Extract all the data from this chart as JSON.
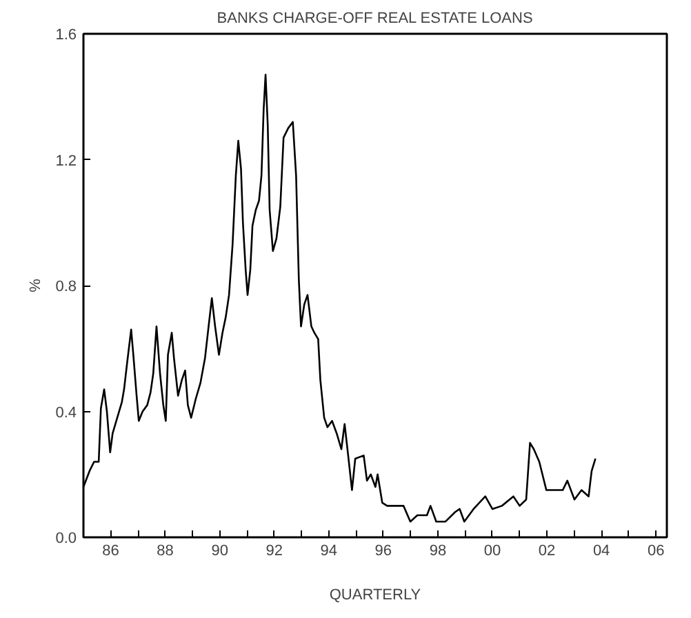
{
  "chart_data": {
    "type": "line",
    "title": "BANKS CHARGE-OFF REAL ESTATE LOANS",
    "xlabel": "QUARTERLY",
    "ylabel": "%",
    "x": [
      1985.0,
      1985.22,
      1985.39,
      1985.56,
      1985.64,
      1985.76,
      1985.86,
      1985.98,
      1986.07,
      1986.24,
      1986.41,
      1986.49,
      1986.61,
      1986.75,
      1986.83,
      1986.95,
      1987.03,
      1987.17,
      1987.34,
      1987.46,
      1987.56,
      1987.68,
      1987.81,
      1987.93,
      1988.02,
      1988.1,
      1988.24,
      1988.32,
      1988.47,
      1988.61,
      1988.73,
      1988.83,
      1988.95,
      1989.12,
      1989.29,
      1989.46,
      1989.59,
      1989.71,
      1989.83,
      1989.97,
      1990.1,
      1990.22,
      1990.34,
      1990.47,
      1990.59,
      1990.68,
      1990.78,
      1990.85,
      1990.95,
      1991.02,
      1991.12,
      1991.2,
      1991.32,
      1991.44,
      1991.53,
      1991.61,
      1991.68,
      1991.76,
      1991.83,
      1991.95,
      1992.08,
      1992.22,
      1992.34,
      1992.51,
      1992.68,
      1992.8,
      1992.9,
      1992.98,
      1993.1,
      1993.22,
      1993.36,
      1993.47,
      1993.61,
      1993.69,
      1993.83,
      1993.95,
      1994.12,
      1994.29,
      1994.46,
      1994.58,
      1994.71,
      1994.85,
      1994.97,
      1995.28,
      1995.4,
      1995.54,
      1995.71,
      1995.79,
      1995.96,
      1996.14,
      1996.74,
      1996.99,
      1997.25,
      1997.6,
      1997.73,
      1997.94,
      1998.28,
      1998.63,
      1998.8,
      1998.97,
      1999.31,
      1999.74,
      2000.0,
      2000.35,
      2000.77,
      2001.0,
      2001.24,
      2001.38,
      2001.52,
      2001.72,
      2001.98,
      2002.58,
      2002.75,
      2003.01,
      2003.27,
      2003.53,
      2003.64,
      2003.78
    ],
    "series": [
      {
        "color": "#000000",
        "values": [
          0.16,
          0.21,
          0.24,
          0.24,
          0.41,
          0.47,
          0.4,
          0.27,
          0.33,
          0.38,
          0.43,
          0.47,
          0.56,
          0.66,
          0.58,
          0.45,
          0.37,
          0.4,
          0.42,
          0.46,
          0.52,
          0.67,
          0.52,
          0.42,
          0.37,
          0.58,
          0.65,
          0.57,
          0.45,
          0.5,
          0.53,
          0.42,
          0.38,
          0.44,
          0.49,
          0.57,
          0.67,
          0.76,
          0.67,
          0.58,
          0.65,
          0.7,
          0.77,
          0.93,
          1.15,
          1.26,
          1.17,
          1.0,
          0.85,
          0.77,
          0.85,
          0.99,
          1.04,
          1.07,
          1.15,
          1.36,
          1.47,
          1.31,
          1.04,
          0.91,
          0.95,
          1.05,
          1.27,
          1.3,
          1.32,
          1.15,
          0.82,
          0.67,
          0.74,
          0.77,
          0.67,
          0.65,
          0.63,
          0.5,
          0.38,
          0.35,
          0.37,
          0.33,
          0.28,
          0.36,
          0.26,
          0.15,
          0.25,
          0.26,
          0.18,
          0.2,
          0.16,
          0.2,
          0.11,
          0.1,
          0.1,
          0.05,
          0.07,
          0.07,
          0.1,
          0.05,
          0.05,
          0.08,
          0.09,
          0.05,
          0.09,
          0.13,
          0.09,
          0.1,
          0.13,
          0.1,
          0.12,
          0.3,
          0.28,
          0.24,
          0.15,
          0.15,
          0.18,
          0.12,
          0.15,
          0.13,
          0.21,
          0.25
        ]
      }
    ],
    "xlim": [
      1985,
      2006.4
    ],
    "xticks": [
      {
        "value": 1986,
        "label": "86"
      },
      {
        "value": 1987,
        "label": null
      },
      {
        "value": 1988,
        "label": "88"
      },
      {
        "value": 1989,
        "label": null
      },
      {
        "value": 1990,
        "label": "90"
      },
      {
        "value": 1991,
        "label": null
      },
      {
        "value": 1992,
        "label": "92"
      },
      {
        "value": 1993,
        "label": null
      },
      {
        "value": 1994,
        "label": "94"
      },
      {
        "value": 1995,
        "label": null
      },
      {
        "value": 1996,
        "label": "96"
      },
      {
        "value": 1997,
        "label": null
      },
      {
        "value": 1998,
        "label": "98"
      },
      {
        "value": 1999,
        "label": null
      },
      {
        "value": 2000,
        "label": "00"
      },
      {
        "value": 2001,
        "label": null
      },
      {
        "value": 2002,
        "label": "02"
      },
      {
        "value": 2003,
        "label": null
      },
      {
        "value": 2004,
        "label": "04"
      },
      {
        "value": 2005,
        "label": null
      },
      {
        "value": 2006,
        "label": "06"
      }
    ],
    "ylim": [
      0,
      1.6
    ],
    "yticks": [
      {
        "value": 0,
        "label": "0.0"
      },
      {
        "value": 0.4,
        "label": "0.4"
      },
      {
        "value": 0.8,
        "label": "0.8"
      },
      {
        "value": 1.2,
        "label": "1.2"
      },
      {
        "value": 1.6,
        "label": "1.6"
      }
    ],
    "grid": false,
    "line_style": "solid"
  }
}
